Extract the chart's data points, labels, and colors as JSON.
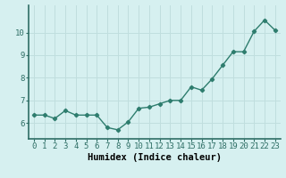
{
  "x": [
    0,
    1,
    2,
    3,
    4,
    5,
    6,
    7,
    8,
    9,
    10,
    11,
    12,
    13,
    14,
    15,
    16,
    17,
    18,
    19,
    20,
    21,
    22,
    23
  ],
  "y": [
    6.35,
    6.35,
    6.2,
    6.55,
    6.35,
    6.35,
    6.35,
    5.8,
    5.7,
    6.05,
    6.65,
    6.7,
    6.85,
    7.0,
    7.0,
    7.6,
    7.45,
    7.95,
    8.55,
    9.15,
    9.15,
    10.05,
    10.55,
    10.1
  ],
  "line_color": "#2e7d6e",
  "marker": "D",
  "marker_size": 2.2,
  "bg_color": "#d6f0f0",
  "grid_color": "#c0dede",
  "xlabel": "Humidex (Indice chaleur)",
  "xlabel_fontsize": 7.5,
  "tick_fontsize": 6.5,
  "ylabel_ticks": [
    6,
    7,
    8,
    9,
    10
  ],
  "xlim": [
    -0.5,
    23.5
  ],
  "ylim": [
    5.3,
    11.2
  ]
}
